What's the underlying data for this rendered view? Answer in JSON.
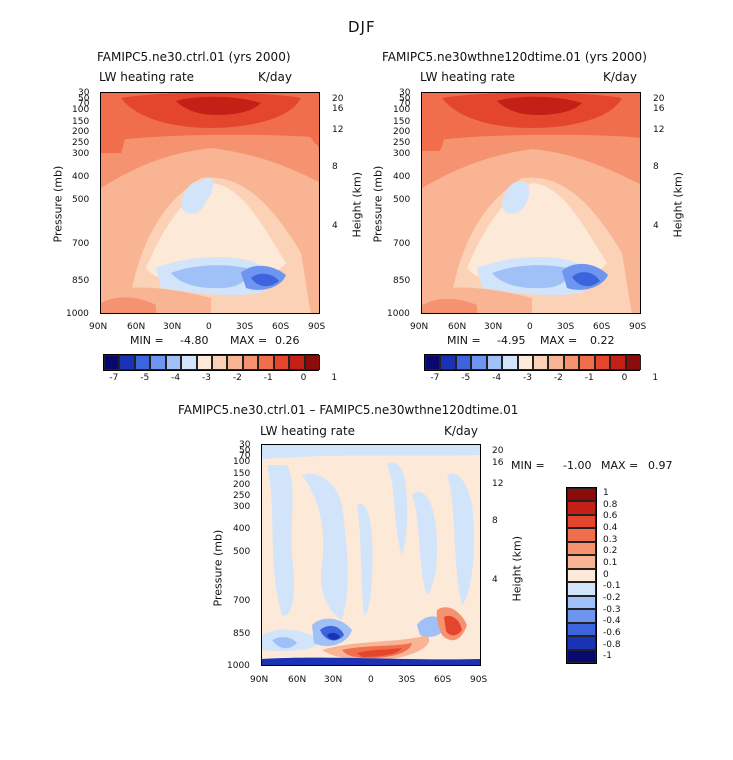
{
  "figure": {
    "season": "DJF"
  },
  "panels": [
    {
      "title": "FAMIPC5.ne30.ctrl.01 (yrs 2000)",
      "left_label": "LW heating rate",
      "right_label": "K/day",
      "ylabel": "Pressure (mb)",
      "y2label": "Height (km)",
      "min_label": "MIN =",
      "min_value": "-4.80",
      "max_label": "MAX =",
      "max_value": "0.26"
    },
    {
      "title": "FAMIPC5.ne30wthne120dtime.01 (yrs 2000)",
      "left_label": "LW heating rate",
      "right_label": "K/day",
      "ylabel": "Pressure (mb)",
      "y2label": "Height (km)",
      "min_label": "MIN =",
      "min_value": "-4.95",
      "max_label": "MAX =",
      "max_value": "0.22"
    },
    {
      "title": "FAMIPC5.ne30.ctrl.01 – FAMIPC5.ne30wthne120dtime.01",
      "left_label": "LW heating rate",
      "right_label": "K/day",
      "ylabel": "Pressure (mb)",
      "y2label": "Height (km)",
      "min_label": "MIN =",
      "min_value": "-1.00",
      "max_label": "MAX =",
      "max_value": "0.97"
    }
  ],
  "chart_data": [
    {
      "type": "heatmap",
      "title": "FAMIPC5.ne30.ctrl.01 (yrs 2000)",
      "subtitle_left": "LW heating rate",
      "units": "K/day",
      "xlabel": "",
      "ylabel": "Pressure (mb)",
      "y2label": "Height (km)",
      "x_ticks": [
        "90N",
        "60N",
        "30N",
        "0",
        "30S",
        "60S",
        "90S"
      ],
      "y_ticks": [
        30,
        50,
        70,
        100,
        150,
        200,
        250,
        300,
        400,
        500,
        700,
        850,
        1000
      ],
      "y2_ticks": [
        20,
        16,
        12,
        8,
        4
      ],
      "min": -4.8,
      "max": 0.26,
      "colorbar_levels": [
        "-7",
        "-5",
        "-4",
        "-3",
        "-2",
        "-1",
        "0",
        "1"
      ]
    },
    {
      "type": "heatmap",
      "title": "FAMIPC5.ne30wthne120dtime.01 (yrs 2000)",
      "subtitle_left": "LW heating rate",
      "units": "K/day",
      "xlabel": "",
      "ylabel": "Pressure (mb)",
      "y2label": "Height (km)",
      "x_ticks": [
        "90N",
        "60N",
        "30N",
        "0",
        "30S",
        "60S",
        "90S"
      ],
      "y_ticks": [
        30,
        50,
        70,
        100,
        150,
        200,
        250,
        300,
        400,
        500,
        700,
        850,
        1000
      ],
      "y2_ticks": [
        20,
        16,
        12,
        8,
        4
      ],
      "min": -4.95,
      "max": 0.22,
      "colorbar_levels": [
        "-7",
        "-5",
        "-4",
        "-3",
        "-2",
        "-1",
        "0",
        "1"
      ]
    },
    {
      "type": "heatmap",
      "title": "FAMIPC5.ne30.ctrl.01 – FAMIPC5.ne30wthne120dtime.01",
      "subtitle_left": "LW heating rate",
      "units": "K/day",
      "xlabel": "",
      "ylabel": "Pressure (mb)",
      "y2label": "Height (km)",
      "x_ticks": [
        "90N",
        "60N",
        "30N",
        "0",
        "30S",
        "60S",
        "90S"
      ],
      "y_ticks": [
        30,
        50,
        70,
        100,
        150,
        200,
        250,
        300,
        400,
        500,
        700,
        850,
        1000
      ],
      "y2_ticks": [
        20,
        16,
        12,
        8,
        4
      ],
      "min": -1.0,
      "max": 0.97,
      "colorbar_levels": [
        "1",
        "0.8",
        "0.6",
        "0.4",
        "0.3",
        "0.2",
        "0.1",
        "0",
        "-0.1",
        "-0.2",
        "-0.3",
        "-0.4",
        "-0.6",
        "-0.8",
        "-1"
      ]
    }
  ],
  "colors": {
    "abs_scale": [
      "#08086e",
      "#1a32b4",
      "#3c64dc",
      "#6e96f0",
      "#a0c0f8",
      "#d2e4fa",
      "#fde9d8",
      "#fbd2b6",
      "#f8b493",
      "#f59270",
      "#f06e4c",
      "#e3462c",
      "#c42016",
      "#8c0b0b"
    ],
    "diff_scale": [
      "#8c0b0b",
      "#c42016",
      "#e3462c",
      "#f06e4c",
      "#f59270",
      "#f8b493",
      "#fde9d8",
      "#d2e4fa",
      "#a0c0f8",
      "#6e96f0",
      "#3c64dc",
      "#1a32b4",
      "#08086e"
    ]
  }
}
